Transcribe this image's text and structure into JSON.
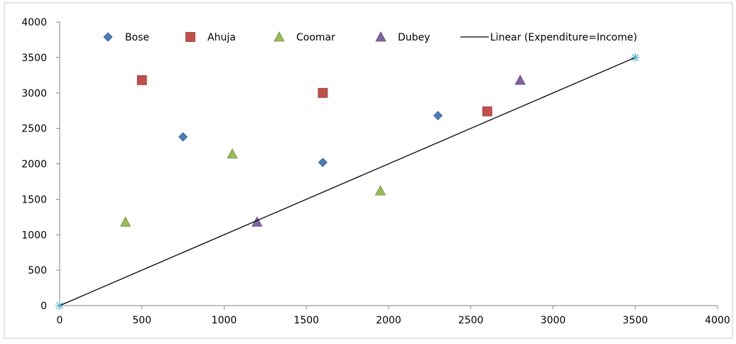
{
  "chart_data": {
    "type": "scatter",
    "title": "",
    "xlabel": "",
    "ylabel": "",
    "xlim": [
      0,
      4000
    ],
    "ylim": [
      0,
      4000
    ],
    "xticks": [
      0,
      500,
      1000,
      1500,
      2000,
      2500,
      3000,
      3500,
      4000
    ],
    "yticks": [
      0,
      500,
      1000,
      1500,
      2000,
      2500,
      3000,
      3500,
      4000
    ],
    "grid": false,
    "legend_position": "top",
    "series": [
      {
        "name": "Bose",
        "marker": "diamond",
        "color": "#4a7ebb",
        "points": [
          [
            750,
            2380
          ],
          [
            1600,
            2020
          ],
          [
            2300,
            2680
          ]
        ]
      },
      {
        "name": "Ahuja",
        "marker": "square",
        "color": "#c0504d",
        "points": [
          [
            500,
            3180
          ],
          [
            1600,
            3000
          ],
          [
            2600,
            2740
          ]
        ]
      },
      {
        "name": "Coomar",
        "marker": "triangle",
        "color": "#9bbb59",
        "points": [
          [
            400,
            1180
          ],
          [
            1050,
            2140
          ],
          [
            1950,
            1620
          ]
        ]
      },
      {
        "name": "Dubey",
        "marker": "triangle",
        "color": "#8064a2",
        "points": [
          [
            1200,
            1180
          ],
          [
            2800,
            3180
          ]
        ]
      },
      {
        "name": "Linear (Expenditure=Income)",
        "marker": "line",
        "color": "#000000",
        "points": [
          [
            0,
            0
          ],
          [
            3500,
            3500
          ]
        ],
        "endpoint_marker": "asterisk",
        "endpoint_color": "#4bacc6"
      }
    ]
  }
}
